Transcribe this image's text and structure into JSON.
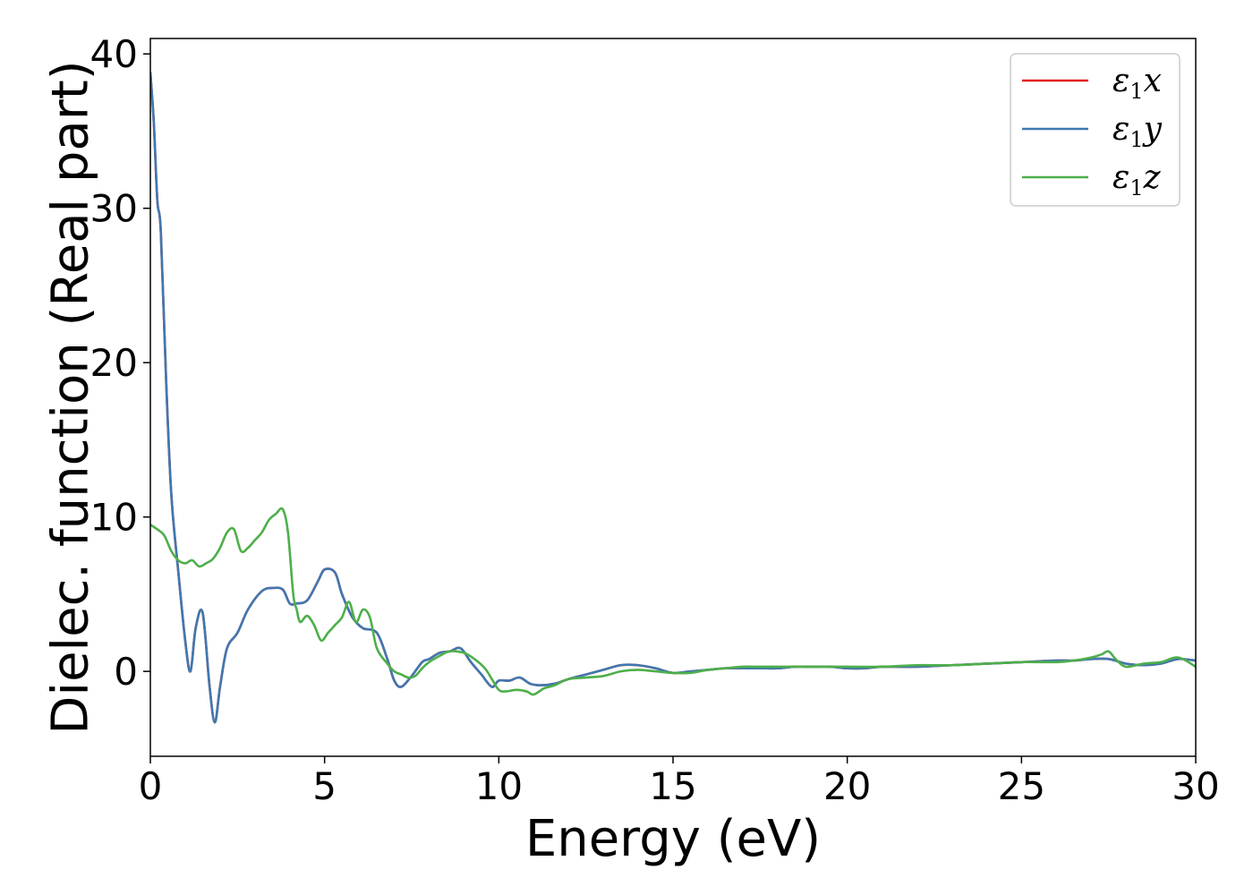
{
  "chart_data": {
    "type": "line",
    "xlabel": "Energy (eV)",
    "ylabel": "Dielec. function (Real part)",
    "xlim": [
      0,
      30
    ],
    "ylim": [
      -5.5,
      41
    ],
    "xticks": [
      0,
      5,
      10,
      15,
      20,
      25,
      30
    ],
    "yticks": [
      0,
      10,
      20,
      30,
      40
    ],
    "grid": false,
    "legend_position": "top-right",
    "series": [
      {
        "name": "ε1x",
        "legend": {
          "sym": "ε",
          "sub": "1",
          "axis": "x"
        },
        "color": "#e41a1c",
        "x": [
          0,
          0.1,
          0.2,
          0.3,
          0.45,
          0.6,
          0.8,
          1.0,
          1.15,
          1.3,
          1.5,
          1.7,
          1.85,
          2.0,
          2.2,
          2.5,
          2.8,
          3.2,
          3.5,
          3.8,
          4.0,
          4.2,
          4.5,
          4.8,
          5.0,
          5.3,
          5.5,
          5.8,
          6.1,
          6.5,
          6.8,
          7.0,
          7.2,
          7.5,
          7.8,
          8.0,
          8.3,
          8.6,
          8.9,
          9.2,
          9.5,
          9.8,
          10.0,
          10.3,
          10.6,
          10.9,
          11.2,
          11.6,
          12.0,
          12.5,
          13.0,
          13.5,
          14.0,
          14.5,
          15.0,
          15.5,
          16.0,
          16.5,
          17.0,
          17.5,
          18.0,
          18.5,
          19.0,
          19.5,
          20.0,
          20.5,
          21.0,
          22.0,
          23.0,
          24.0,
          25.0,
          26.0,
          26.5,
          27.0,
          27.5,
          28.0,
          28.5,
          29.0,
          29.5,
          30.0
        ],
        "values": [
          38.8,
          35.5,
          30.5,
          28.5,
          19.0,
          11.5,
          6.5,
          2.0,
          0.0,
          2.8,
          3.8,
          -1.0,
          -3.3,
          -1.0,
          1.5,
          2.5,
          4.0,
          5.2,
          5.4,
          5.3,
          4.4,
          4.4,
          4.6,
          5.8,
          6.6,
          6.4,
          5.0,
          3.5,
          2.8,
          2.5,
          0.8,
          -0.6,
          -1.0,
          -0.3,
          0.6,
          0.8,
          1.2,
          1.3,
          1.5,
          0.6,
          -0.2,
          -1.0,
          -0.6,
          -0.6,
          -0.4,
          -0.8,
          -0.9,
          -0.8,
          -0.5,
          -0.2,
          0.1,
          0.4,
          0.4,
          0.2,
          -0.1,
          0.0,
          0.1,
          0.2,
          0.2,
          0.2,
          0.2,
          0.3,
          0.3,
          0.3,
          0.2,
          0.2,
          0.3,
          0.3,
          0.4,
          0.5,
          0.6,
          0.7,
          0.7,
          0.8,
          0.8,
          0.5,
          0.4,
          0.5,
          0.8,
          0.7
        ]
      },
      {
        "name": "ε1y",
        "legend": {
          "sym": "ε",
          "sub": "1",
          "axis": "y"
        },
        "color": "#3f78b0",
        "x": [
          0,
          0.1,
          0.2,
          0.3,
          0.45,
          0.6,
          0.8,
          1.0,
          1.15,
          1.3,
          1.5,
          1.7,
          1.85,
          2.0,
          2.2,
          2.5,
          2.8,
          3.2,
          3.5,
          3.8,
          4.0,
          4.2,
          4.5,
          4.8,
          5.0,
          5.3,
          5.5,
          5.8,
          6.1,
          6.5,
          6.8,
          7.0,
          7.2,
          7.5,
          7.8,
          8.0,
          8.3,
          8.6,
          8.9,
          9.2,
          9.5,
          9.8,
          10.0,
          10.3,
          10.6,
          10.9,
          11.2,
          11.6,
          12.0,
          12.5,
          13.0,
          13.5,
          14.0,
          14.5,
          15.0,
          15.5,
          16.0,
          16.5,
          17.0,
          17.5,
          18.0,
          18.5,
          19.0,
          19.5,
          20.0,
          20.5,
          21.0,
          22.0,
          23.0,
          24.0,
          25.0,
          26.0,
          26.5,
          27.0,
          27.5,
          28.0,
          28.5,
          29.0,
          29.5,
          30.0
        ],
        "values": [
          38.8,
          35.5,
          30.5,
          28.5,
          19.0,
          11.5,
          6.5,
          2.0,
          0.0,
          2.8,
          3.8,
          -1.0,
          -3.3,
          -1.0,
          1.5,
          2.5,
          4.0,
          5.2,
          5.4,
          5.3,
          4.4,
          4.4,
          4.6,
          5.8,
          6.6,
          6.4,
          5.0,
          3.5,
          2.8,
          2.5,
          0.8,
          -0.6,
          -1.0,
          -0.3,
          0.6,
          0.8,
          1.2,
          1.3,
          1.5,
          0.6,
          -0.2,
          -1.0,
          -0.6,
          -0.6,
          -0.4,
          -0.8,
          -0.9,
          -0.8,
          -0.5,
          -0.2,
          0.1,
          0.4,
          0.4,
          0.2,
          -0.1,
          0.0,
          0.1,
          0.2,
          0.2,
          0.2,
          0.2,
          0.3,
          0.3,
          0.3,
          0.2,
          0.2,
          0.3,
          0.3,
          0.4,
          0.5,
          0.6,
          0.7,
          0.7,
          0.8,
          0.8,
          0.5,
          0.4,
          0.5,
          0.8,
          0.7
        ]
      },
      {
        "name": "ε1z",
        "legend": {
          "sym": "ε",
          "sub": "1",
          "axis": "z"
        },
        "color": "#4daf4a",
        "x": [
          0,
          0.2,
          0.4,
          0.6,
          0.8,
          1.0,
          1.2,
          1.4,
          1.6,
          1.8,
          2.0,
          2.2,
          2.4,
          2.6,
          2.8,
          3.0,
          3.2,
          3.4,
          3.6,
          3.8,
          3.95,
          4.1,
          4.2,
          4.3,
          4.5,
          4.7,
          4.9,
          5.1,
          5.3,
          5.5,
          5.7,
          5.9,
          6.1,
          6.3,
          6.5,
          6.8,
          7.0,
          7.2,
          7.4,
          7.6,
          7.8,
          8.0,
          8.3,
          8.6,
          9.0,
          9.3,
          9.6,
          9.8,
          10.0,
          10.2,
          10.5,
          10.8,
          11.0,
          11.3,
          11.6,
          12.0,
          12.5,
          13.0,
          13.5,
          14.0,
          14.5,
          15.0,
          15.5,
          16.0,
          16.5,
          17.0,
          17.5,
          18.0,
          18.5,
          19.0,
          19.5,
          20.0,
          21.0,
          22.0,
          23.0,
          24.0,
          25.0,
          26.0,
          26.5,
          27.0,
          27.3,
          27.5,
          27.7,
          28.0,
          28.5,
          29.0,
          29.5,
          30.0
        ],
        "values": [
          9.5,
          9.2,
          8.8,
          7.8,
          7.2,
          7.0,
          7.2,
          6.8,
          7.0,
          7.3,
          8.0,
          9.0,
          9.2,
          7.8,
          8.0,
          8.5,
          9.0,
          9.8,
          10.2,
          10.5,
          9.0,
          5.0,
          4.0,
          3.2,
          3.6,
          3.0,
          2.0,
          2.5,
          3.0,
          3.5,
          4.5,
          3.2,
          4.0,
          3.5,
          1.5,
          0.5,
          0.0,
          -0.2,
          -0.4,
          -0.3,
          0.2,
          0.6,
          1.0,
          1.3,
          1.2,
          0.8,
          0.2,
          -0.5,
          -1.2,
          -1.3,
          -1.2,
          -1.3,
          -1.5,
          -1.1,
          -0.9,
          -0.5,
          -0.4,
          -0.3,
          0.0,
          0.1,
          0.0,
          -0.1,
          -0.1,
          0.1,
          0.2,
          0.3,
          0.3,
          0.3,
          0.3,
          0.3,
          0.3,
          0.3,
          0.3,
          0.4,
          0.4,
          0.5,
          0.6,
          0.6,
          0.7,
          0.9,
          1.1,
          1.3,
          0.8,
          0.3,
          0.5,
          0.6,
          0.9,
          0.3
        ]
      }
    ]
  }
}
